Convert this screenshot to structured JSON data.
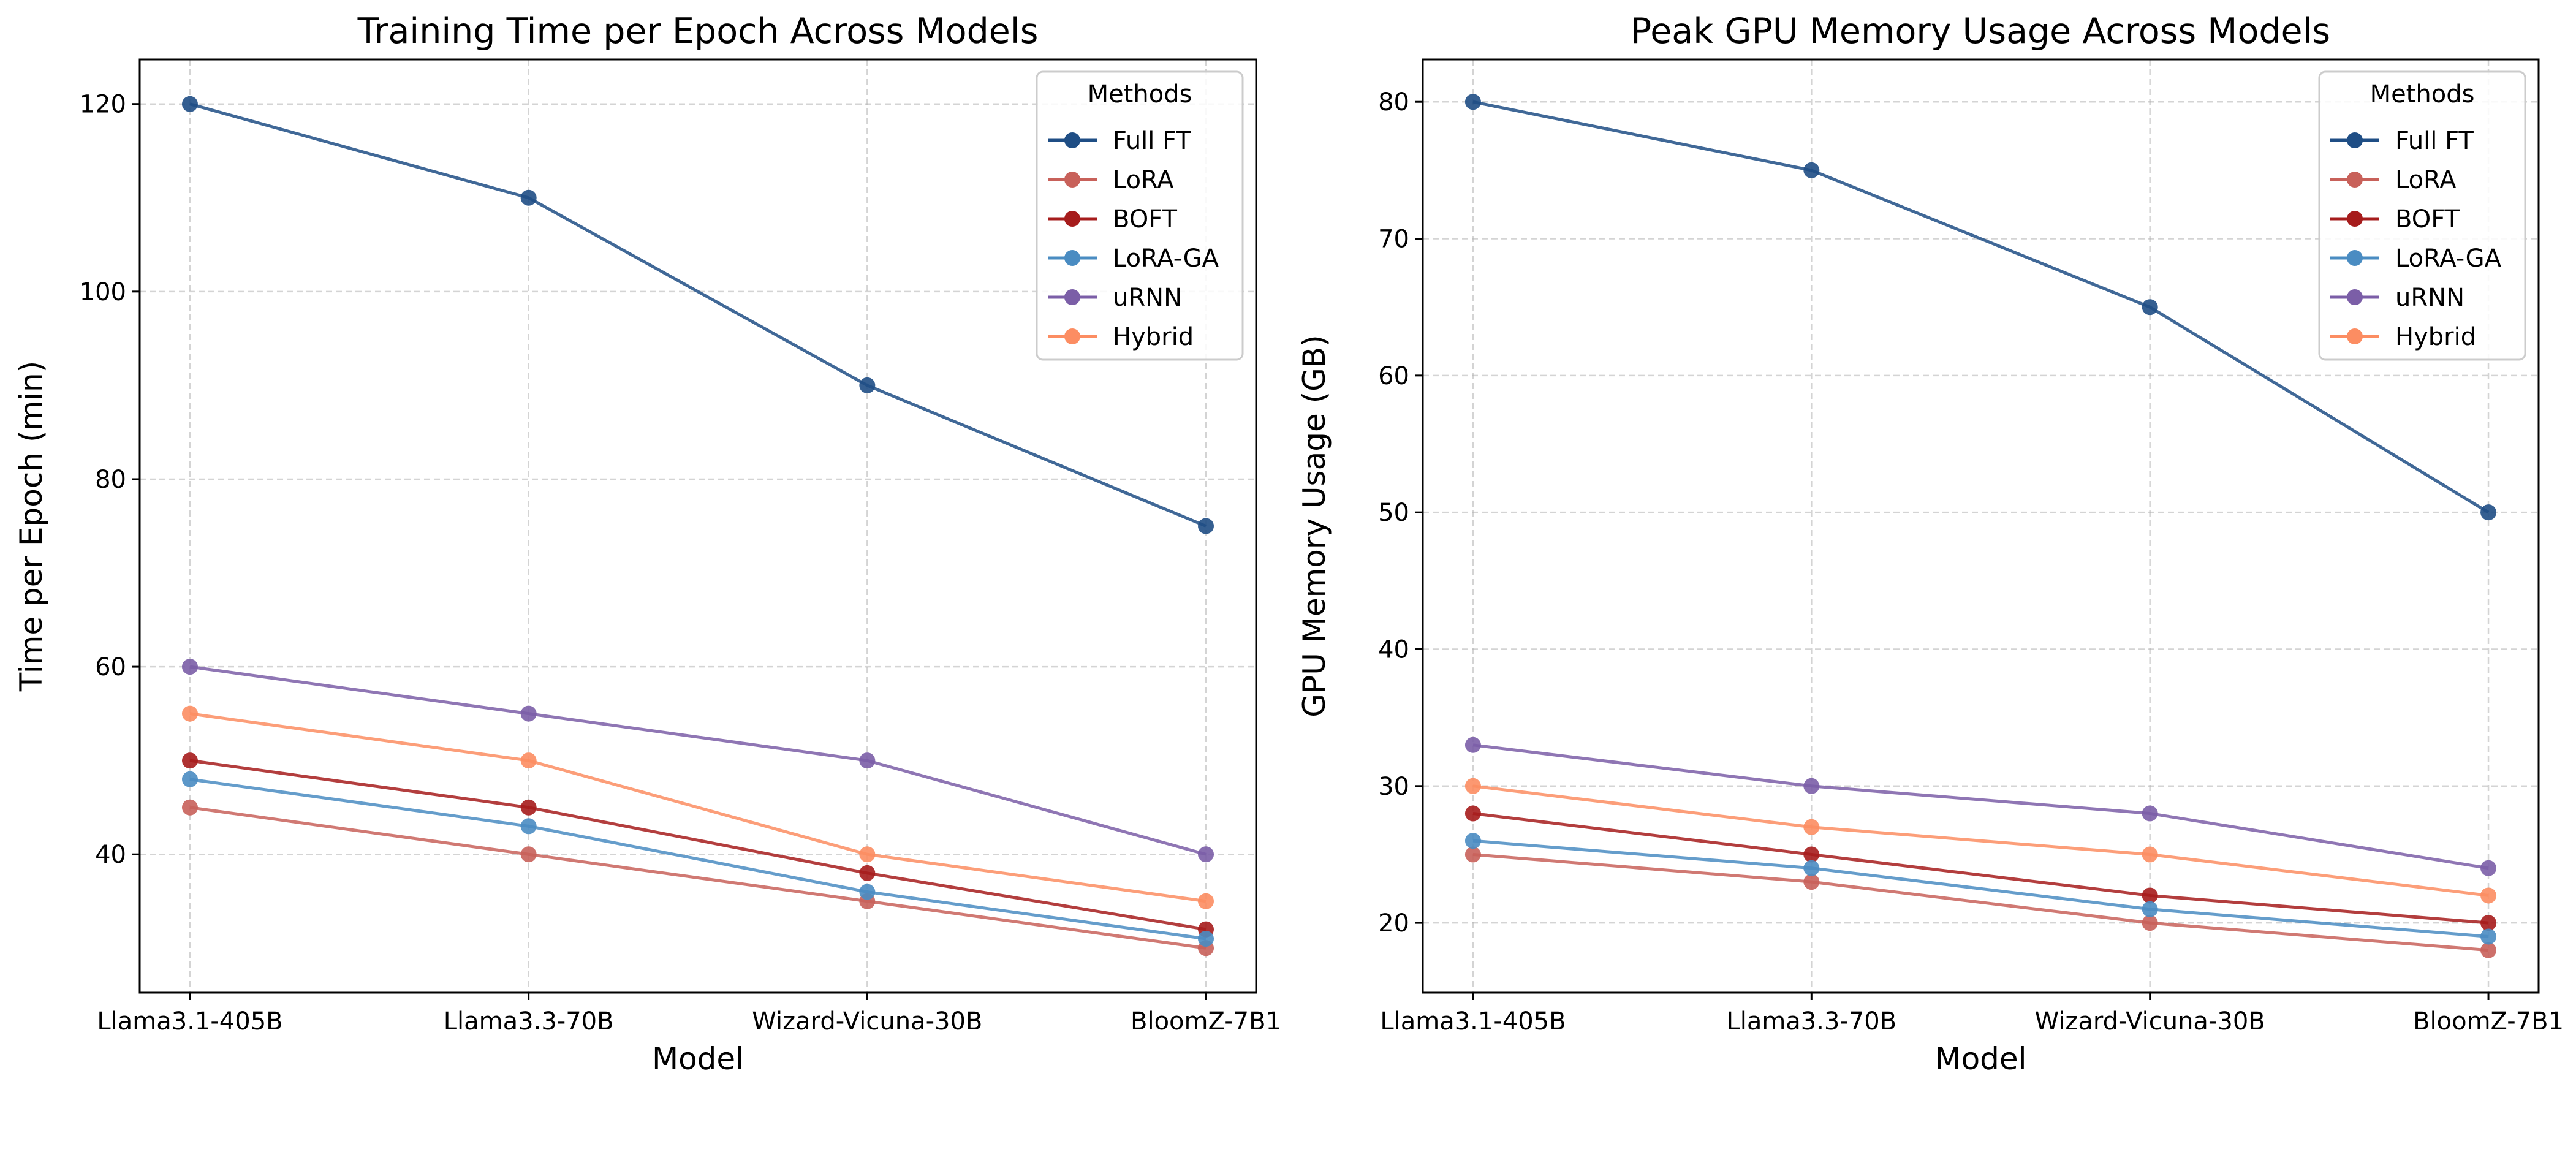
{
  "chart_data": [
    {
      "type": "line",
      "title": "Training Time per Epoch Across Models",
      "xlabel": "Model",
      "ylabel": "Time per Epoch (min)",
      "categories": [
        "Llama3.1-405B",
        "Llama3.3-70B",
        "Wizard-Vicuna-30B",
        "BloomZ-7B1"
      ],
      "ylim": [
        25.25,
        124.75
      ],
      "yticks": [
        40,
        60,
        80,
        100,
        120
      ],
      "grid": true,
      "legend": {
        "title": "Methods",
        "position": "top-right"
      },
      "series": [
        {
          "name": "Full FT",
          "color": "#1f4e85",
          "values": [
            120,
            110,
            90,
            75
          ]
        },
        {
          "name": "LoRA",
          "color": "#c8615a",
          "values": [
            45,
            40,
            35,
            30
          ]
        },
        {
          "name": "BOFT",
          "color": "#a61c1c",
          "values": [
            50,
            45,
            38,
            32
          ]
        },
        {
          "name": "LoRA-GA",
          "color": "#4a8cc2",
          "values": [
            48,
            43,
            36,
            31
          ]
        },
        {
          "name": "uRNN",
          "color": "#7b5ea7",
          "values": [
            60,
            55,
            50,
            40
          ]
        },
        {
          "name": "Hybrid",
          "color": "#fc8d62",
          "values": [
            55,
            50,
            40,
            35
          ]
        }
      ]
    },
    {
      "type": "line",
      "title": "Peak GPU Memory Usage Across Models",
      "xlabel": "Model",
      "ylabel": "GPU Memory Usage (GB)",
      "categories": [
        "Llama3.1-405B",
        "Llama3.3-70B",
        "Wizard-Vicuna-30B",
        "BloomZ-7B1"
      ],
      "ylim": [
        14.9,
        83.1
      ],
      "yticks": [
        20,
        30,
        40,
        50,
        60,
        70,
        80
      ],
      "grid": true,
      "legend": {
        "title": "Methods",
        "position": "top-right"
      },
      "series": [
        {
          "name": "Full FT",
          "color": "#1f4e85",
          "values": [
            80,
            75,
            65,
            50
          ]
        },
        {
          "name": "LoRA",
          "color": "#c8615a",
          "values": [
            25,
            23,
            20,
            18
          ]
        },
        {
          "name": "BOFT",
          "color": "#a61c1c",
          "values": [
            28,
            25,
            22,
            20
          ]
        },
        {
          "name": "LoRA-GA",
          "color": "#4a8cc2",
          "values": [
            26,
            24,
            21,
            19
          ]
        },
        {
          "name": "uRNN",
          "color": "#7b5ea7",
          "values": [
            33,
            30,
            28,
            24
          ]
        },
        {
          "name": "Hybrid",
          "color": "#fc8d62",
          "values": [
            30,
            27,
            25,
            22
          ]
        }
      ]
    }
  ]
}
